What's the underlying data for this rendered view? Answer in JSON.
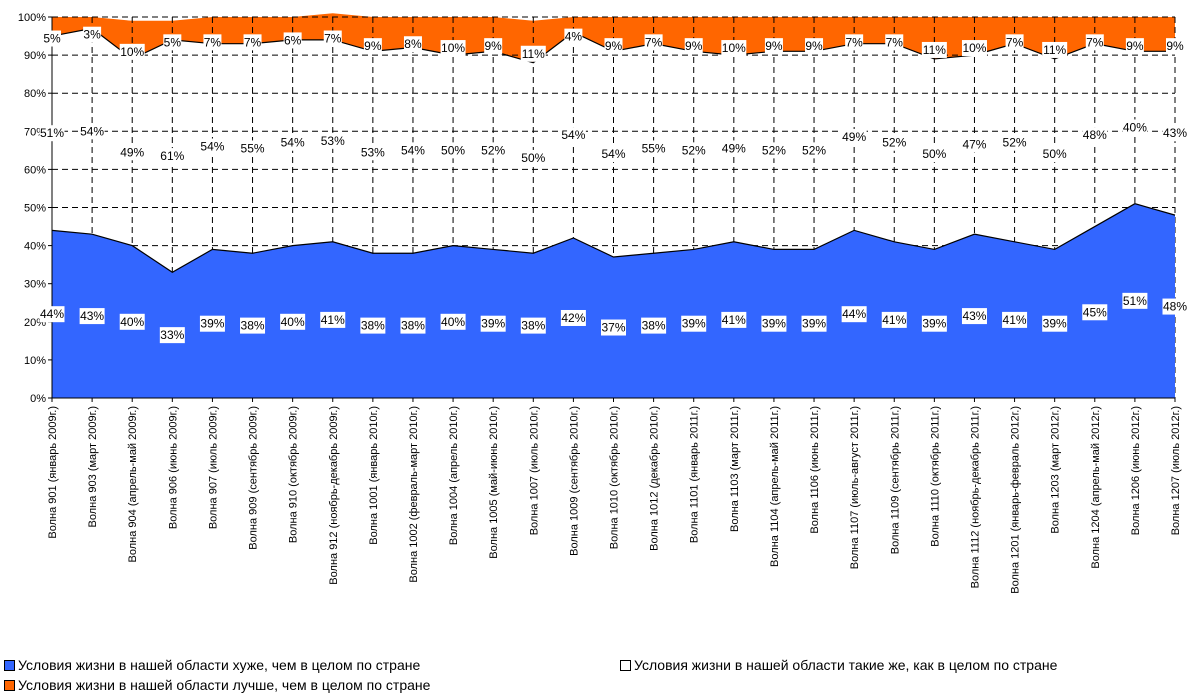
{
  "chart_data": {
    "type": "area",
    "stacked_percent": true,
    "categories": [
      "Волна 901 (январь 2009г.)",
      "Волна 903 (март 2009г.)",
      "Волна 904 (апрель-май 2009г.)",
      "Волна 906 (июнь 2009г.)",
      "Волна 907 (июль 2009г.)",
      "Волна 909 (сентябрь 2009г.)",
      "Волна 910 (октябрь 2009г.)",
      "Волна 912 (ноябрь-декабрь 2009г.)",
      "Волна 1001 (январь 2010г.)",
      "Волна 1002 (февраль-март 2010г.)",
      "Волна 1004 (апрель 2010г.)",
      "Волна 1005 (май-июнь 2010г.)",
      "Волна 1007 (июль 2010г.)",
      "Волна 1009 (сентябрь 2010г.)",
      "Волна 1010 (октябрь 2010г.)",
      "Волна 1012 (декабрь 2010г.)",
      "Волна 1101 (январь 2011г.)",
      "Волна 1103 (март 2011г.)",
      "Волна 1104 (апрель-май 2011г.)",
      "Волна 1106 (июнь 2011г.)",
      "Волна 1107 (июль-август 2011г.)",
      "Волна 1109 (сентябрь 2011г.)",
      "Волна 1110 (октябрь 2011г.)",
      "Волна 1112 (ноябрь-декабрь 2011г.)",
      "Волна 1201 (январь-февраль 2012г.)",
      "Волна 1203 (март 2012г.)",
      "Волна 1204 (апрель-май 2012г.)",
      "Волна 1206 (июнь 2012г.)",
      "Волна 1207 (июль 2012г.)"
    ],
    "series": [
      {
        "name": "Условия жизни в нашей области хуже, чем в целом по стране",
        "color": "#3366ff",
        "values": [
          44,
          43,
          40,
          33,
          39,
          38,
          40,
          41,
          38,
          38,
          40,
          39,
          38,
          42,
          37,
          38,
          39,
          41,
          39,
          39,
          44,
          41,
          39,
          43,
          41,
          39,
          45,
          51,
          48
        ]
      },
      {
        "name": "Условия жизни в нашей области такие же, как в целом по стране",
        "color": "#ffffff",
        "values": [
          51,
          54,
          49,
          61,
          54,
          55,
          54,
          53,
          53,
          54,
          50,
          52,
          50,
          54,
          54,
          55,
          52,
          49,
          52,
          52,
          49,
          52,
          50,
          47,
          52,
          50,
          48,
          40,
          43
        ]
      },
      {
        "name": "Условия жизни в нашей области лучше, чем в целом по стране",
        "color": "#ff6600",
        "values": [
          5,
          3,
          10,
          5,
          7,
          7,
          6,
          7,
          9,
          8,
          10,
          9,
          11,
          4,
          9,
          7,
          9,
          10,
          9,
          9,
          7,
          7,
          11,
          10,
          7,
          11,
          7,
          9,
          9
        ]
      }
    ],
    "ylim": [
      0,
      100
    ],
    "y_ticks": [
      "0%",
      "10%",
      "20%",
      "30%",
      "40%",
      "50%",
      "60%",
      "70%",
      "80%",
      "90%",
      "100%"
    ],
    "label_suffix": "%",
    "grid": true,
    "legend_position": "bottom"
  }
}
